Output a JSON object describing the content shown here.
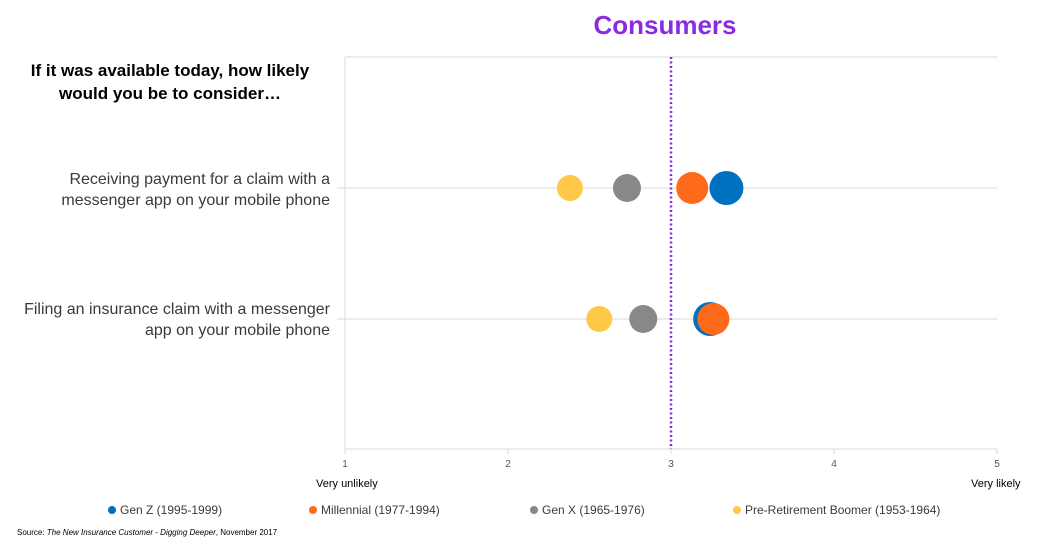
{
  "title": "Consumers",
  "question": "If it was available today, how likely would you be to consider…",
  "chart_data": {
    "type": "scatter",
    "title": "Consumers",
    "categories": [
      "Receiving payment for a claim with a messenger app on your mobile phone",
      "Filing an insurance claim with a messenger app on your mobile phone"
    ],
    "xlim": [
      1,
      5
    ],
    "xticks": [
      "1",
      "2",
      "3",
      "4",
      "5"
    ],
    "x_end_labels": {
      "low": "Very unlikely",
      "high": "Very likely"
    },
    "reference_line": {
      "x": 3,
      "style": "dotted",
      "color": "#8a2be2"
    },
    "grid": "horizontal category lines",
    "legend_position": "bottom",
    "series": [
      {
        "name": "Gen Z (1995-1999)",
        "color": "#0070c0",
        "values": [
          3.34,
          3.24
        ]
      },
      {
        "name": "Millennial (1977-1994)",
        "color": "#ff6a1a",
        "values": [
          3.13,
          3.26
        ]
      },
      {
        "name": "Gen X (1965-1976)",
        "color": "#888888",
        "values": [
          2.73,
          2.83
        ]
      },
      {
        "name": "Pre-Retirement Boomer (1953-1964)",
        "color": "#ffc846",
        "values": [
          2.38,
          2.56
        ]
      }
    ]
  },
  "source": {
    "prefix": "Source: ",
    "work": "The New Insurance Customer - Digging Deeper",
    "suffix": ", November 2017"
  }
}
